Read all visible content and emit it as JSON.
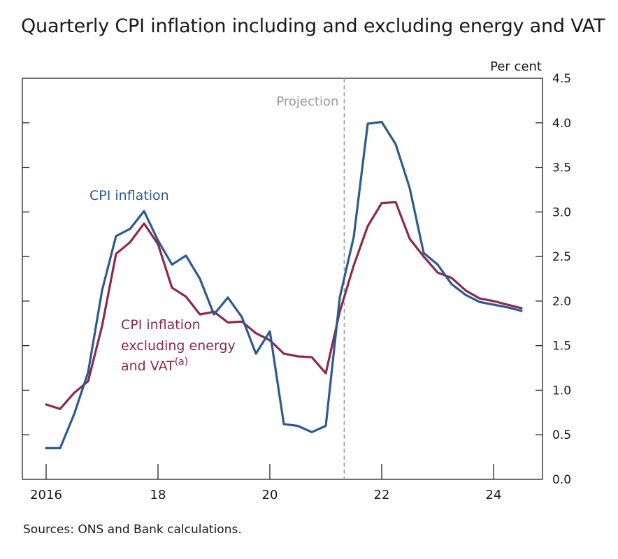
{
  "title": "Quarterly CPI inflation including and excluding energy and VAT",
  "source": "Sources: ONS and Bank calculations.",
  "chart_data": {
    "type": "line",
    "title": "Quarterly CPI inflation including and excluding energy and VAT",
    "ylabel": "Per cent",
    "xlabel": "",
    "ylim": [
      0,
      4.5
    ],
    "yticks": [
      "0.0",
      "0.5",
      "1.0",
      "1.5",
      "2.0",
      "2.5",
      "3.0",
      "3.5",
      "4.0",
      "4.5"
    ],
    "xticks": [
      {
        "value": 2016,
        "label": "2016"
      },
      {
        "value": 2018,
        "label": "18"
      },
      {
        "value": 2020,
        "label": "20"
      },
      {
        "value": 2022,
        "label": "22"
      },
      {
        "value": 2024,
        "label": "24"
      }
    ],
    "projection_start": 2021.33,
    "projection_label": "Projection",
    "colors": {
      "cpi": "#2d5a91",
      "core": "#8c2a4b",
      "projection": "#999999",
      "axis": "#222222"
    },
    "series": [
      {
        "name": "CPI inflation",
        "label_lines": [
          "CPI inflation"
        ],
        "color": "#2d5a91",
        "x": [
          2016.0,
          2016.25,
          2016.5,
          2016.75,
          2017.0,
          2017.25,
          2017.5,
          2017.75,
          2018.0,
          2018.25,
          2018.5,
          2018.75,
          2019.0,
          2019.25,
          2019.5,
          2019.75,
          2020.0,
          2020.25,
          2020.5,
          2020.75,
          2021.0,
          2021.25,
          2021.5,
          2021.75,
          2022.0,
          2022.25,
          2022.5,
          2022.75,
          2023.0,
          2023.25,
          2023.5,
          2023.75,
          2024.0,
          2024.25,
          2024.5
        ],
        "y": [
          0.35,
          0.35,
          0.73,
          1.2,
          2.12,
          2.73,
          2.81,
          3.01,
          2.68,
          2.41,
          2.51,
          2.25,
          1.85,
          2.04,
          1.82,
          1.41,
          1.66,
          0.62,
          0.6,
          0.53,
          0.6,
          2.04,
          2.72,
          3.99,
          4.01,
          3.76,
          3.27,
          2.54,
          2.41,
          2.19,
          2.07,
          1.99,
          1.96,
          1.93,
          1.89
        ]
      },
      {
        "name": "CPI inflation excluding energy and VAT(a)",
        "label_lines": [
          "CPI inflation",
          "excluding energy",
          "and VAT"
        ],
        "label_superscript": "(a)",
        "color": "#8c2a4b",
        "x": [
          2016.0,
          2016.25,
          2016.5,
          2016.75,
          2017.0,
          2017.25,
          2017.5,
          2017.75,
          2018.0,
          2018.25,
          2018.5,
          2018.75,
          2019.0,
          2019.25,
          2019.5,
          2019.75,
          2020.0,
          2020.25,
          2020.5,
          2020.75,
          2021.0,
          2021.25,
          2021.5,
          2021.75,
          2022.0,
          2022.25,
          2022.5,
          2022.75,
          2023.0,
          2023.25,
          2023.5,
          2023.75,
          2024.0,
          2024.25,
          2024.5
        ],
        "y": [
          0.84,
          0.79,
          0.97,
          1.1,
          1.72,
          2.53,
          2.66,
          2.87,
          2.64,
          2.15,
          2.05,
          1.85,
          1.88,
          1.76,
          1.77,
          1.64,
          1.56,
          1.41,
          1.38,
          1.37,
          1.19,
          1.88,
          2.4,
          2.84,
          3.1,
          3.11,
          2.7,
          2.5,
          2.32,
          2.26,
          2.12,
          2.03,
          2.0,
          1.96,
          1.92
        ]
      }
    ]
  }
}
